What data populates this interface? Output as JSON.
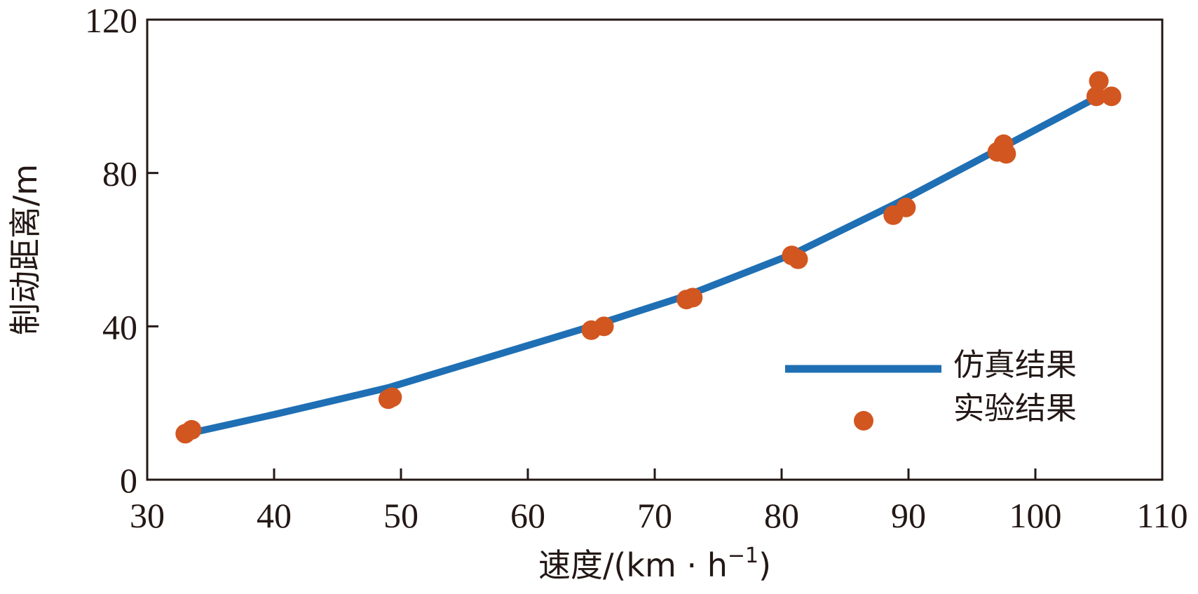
{
  "chart_data": {
    "type": "line",
    "title": "",
    "xlabel_main": "速度/(km · h",
    "xlabel_sup": "−1",
    "xlabel_close": ")",
    "ylabel": "制动距离/m",
    "xlim": [
      30,
      110
    ],
    "ylim": [
      0,
      120
    ],
    "x_ticks": [
      "30",
      "40",
      "50",
      "60",
      "70",
      "80",
      "90",
      "100",
      "110"
    ],
    "y_ticks": [
      "0",
      "40",
      "80",
      "120"
    ],
    "grid": false,
    "legend_position": "bottom-right",
    "colors": {
      "simulation": "#1f6fb4",
      "experiment": "#d2561f",
      "text": "#231815"
    },
    "series": [
      {
        "name": "仿真结果",
        "kind": "line",
        "x": [
          32.5,
          40,
          49,
          57,
          65,
          72.5,
          81,
          89,
          97,
          105
        ],
        "y": [
          11.5,
          17,
          24,
          32,
          40,
          48,
          59,
          72,
          86,
          100
        ]
      },
      {
        "name": "实验结果",
        "kind": "scatter",
        "x": [
          33,
          33.5,
          49,
          49.3,
          65,
          66,
          72.5,
          73,
          80.8,
          81.3,
          88.8,
          89.8,
          97,
          97.5,
          97.7,
          104.8,
          105,
          106
        ],
        "y": [
          12,
          13,
          21,
          21.5,
          39,
          40,
          47,
          47.5,
          58.5,
          57.5,
          69,
          71,
          85.5,
          87.5,
          85,
          100,
          104,
          100
        ]
      }
    ]
  }
}
